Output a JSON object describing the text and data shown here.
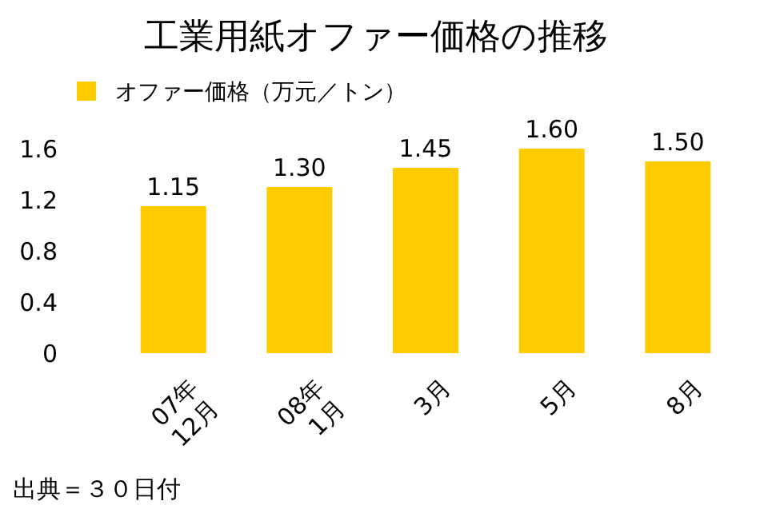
{
  "chart_data": {
    "type": "bar",
    "title": "工業用紙オファー価格の推移",
    "categories": [
      "07年\n12月",
      "08年\n1月",
      "3月",
      "5月",
      "8月"
    ],
    "series": [
      {
        "name": "オファー価格（万元／トン）",
        "color": "#ffcc00",
        "values": [
          1.15,
          1.3,
          1.45,
          1.6,
          1.5
        ]
      }
    ],
    "value_labels": [
      "1.15",
      "1.30",
      "1.45",
      "1.60",
      "1.50"
    ],
    "ylim": [
      0,
      1.6
    ],
    "yticks": [
      0,
      0.4,
      0.8,
      1.2,
      1.6
    ],
    "grid": false,
    "legend": "top left",
    "annotations": [
      "出典＝３０日付"
    ]
  }
}
